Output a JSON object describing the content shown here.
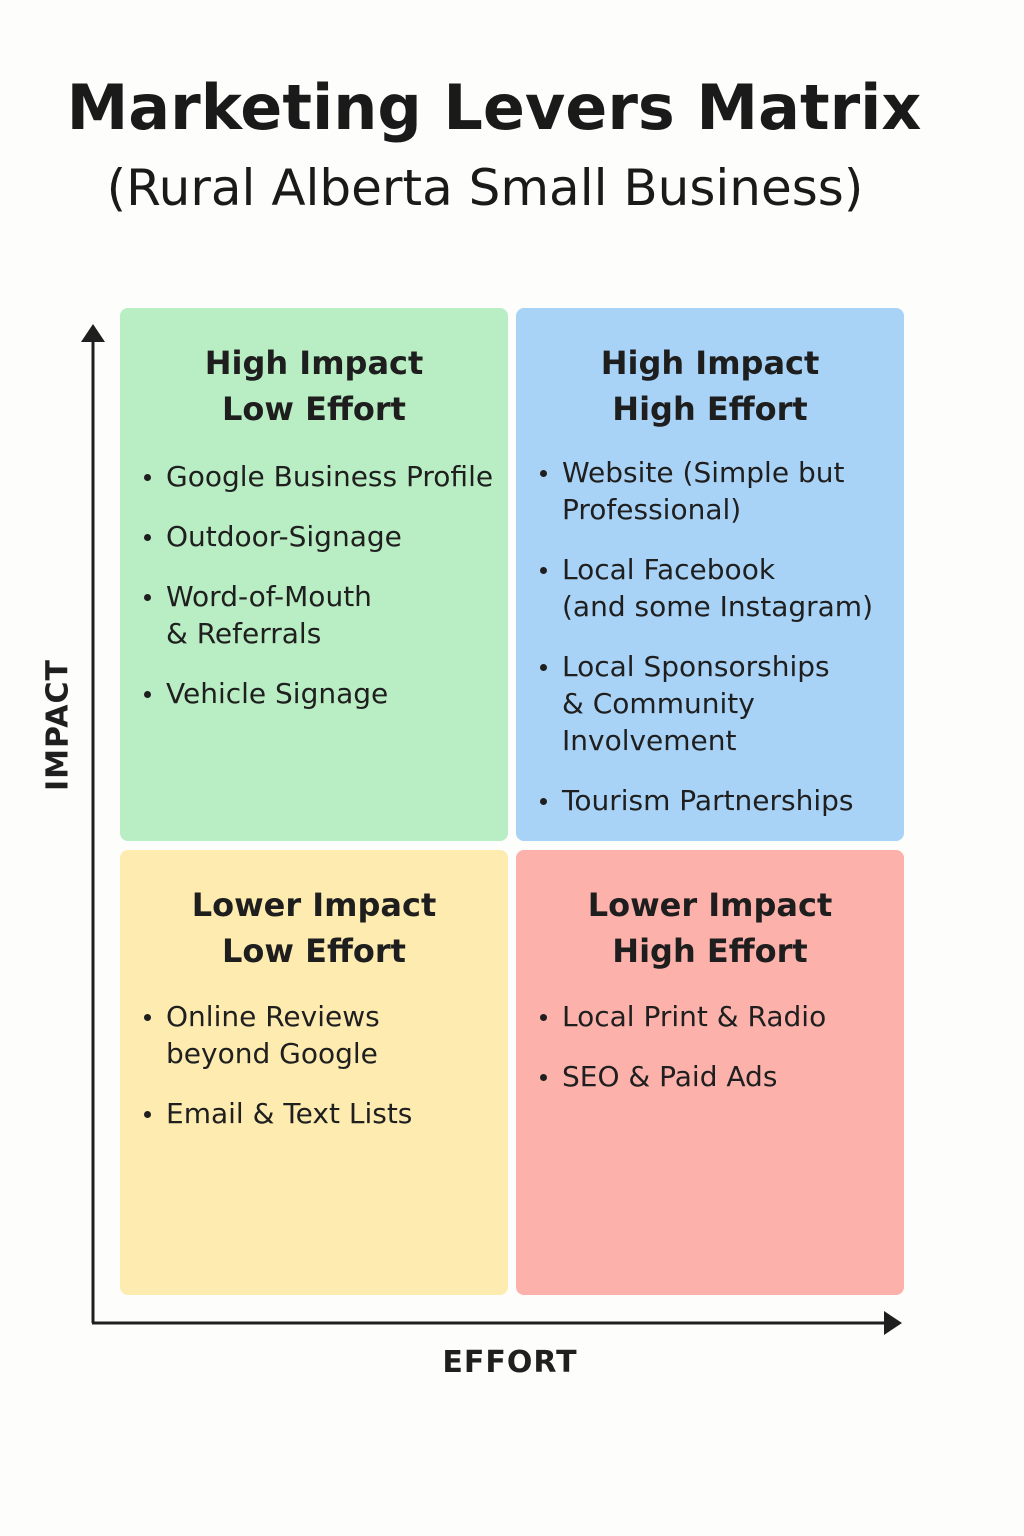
{
  "title": "Marketing Levers Matrix",
  "subtitle": "(Rural Alberta Small Business)",
  "axes": {
    "y_label": "IMPACT",
    "x_label": "EFFORT"
  },
  "colors": {
    "high_impact_low_effort": "#b9edc3",
    "high_impact_high_effort": "#a8d3f6",
    "lower_impact_low_effort": "#fdebb0",
    "lower_impact_high_effort": "#fcb1aa",
    "axis": "#1f1f1f"
  },
  "quadrants": [
    {
      "heading_line1": "High Impact",
      "heading_line2": "Low Effort",
      "items": [
        "Google Business Profile",
        "Outdoor-Signage",
        "Word-of-Mouth\n& Referrals",
        "Vehicle Signage"
      ]
    },
    {
      "heading_line1": "High Impact",
      "heading_line2": "High Effort",
      "items": [
        "Website (Simple but\nProfessional)",
        "Local Facebook\n(and some Instagram)",
        "Local Sponsorships\n& Community\nInvolvement",
        "Tourism Partnerships"
      ]
    },
    {
      "heading_line1": "Lower Impact",
      "heading_line2": "Low Effort",
      "items": [
        "Online Reviews\nbeyond Google",
        "Email & Text Lists"
      ]
    },
    {
      "heading_line1": "Lower Impact",
      "heading_line2": "High Effort",
      "items": [
        "Local Print & Radio",
        "SEO & Paid Ads"
      ]
    }
  ]
}
